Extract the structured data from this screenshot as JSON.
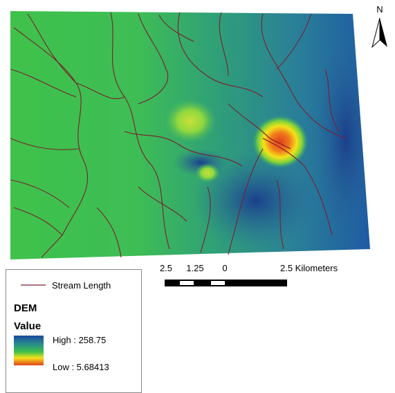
{
  "north_arrow": {
    "label": "N"
  },
  "scale_bar": {
    "labels": [
      "2.5",
      "1.25",
      "0",
      "2.5 Kilometers"
    ]
  },
  "legend": {
    "stream_label": "Stream Length",
    "title": "DEM",
    "subtitle": "Value",
    "high_label": "High : 258.75",
    "low_label": "Low : 5.68413"
  }
}
